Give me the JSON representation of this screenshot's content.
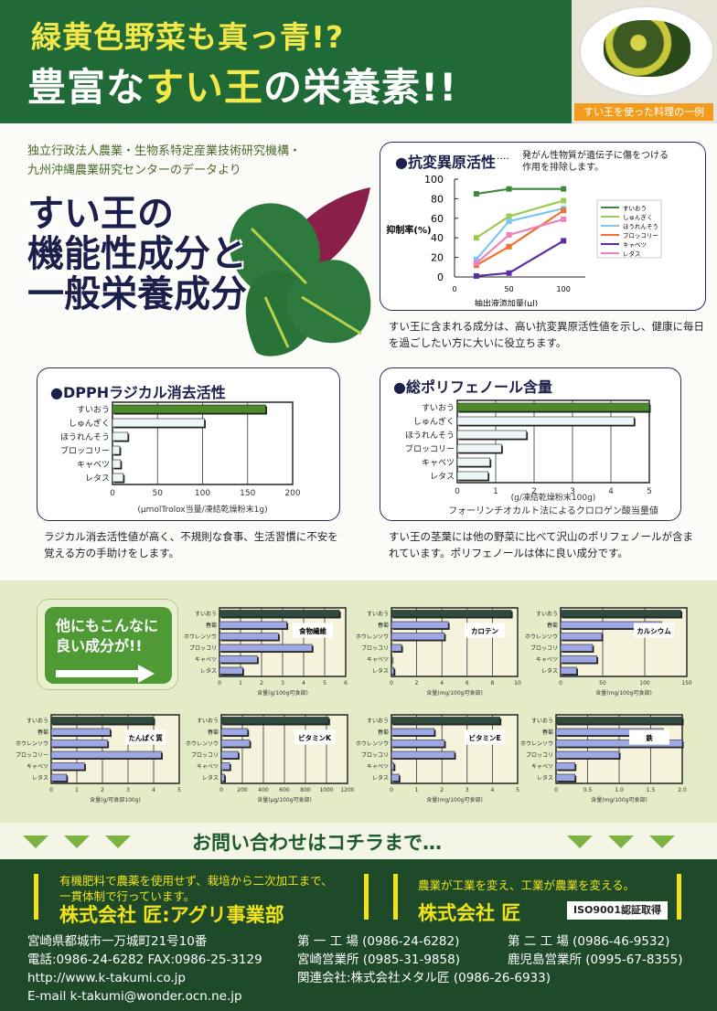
{
  "header": {
    "line1": "緑黄色野菜も真っ青!?",
    "line2_pre": "豊富な",
    "line2_highlight": "すい王",
    "line2_post": "の栄養素!!",
    "photo_caption": "すい王を使った料理の一例"
  },
  "intro": {
    "source_line1": "独立行政法人農業・生物系特定産業技術研究機構・",
    "source_line2": "九州沖縄農業研究センターのデータより",
    "title_line1": "すい王の",
    "title_line2": "機能性成分と",
    "title_line3": "一般栄養成分"
  },
  "antimutagen": {
    "title": "●抗変異原活性",
    "dots": "····",
    "note_line1": "発がん性物質が遺伝子に傷をつける",
    "note_line2": "作用を排除します。",
    "caption": "すい王に含まれる成分は、高い抗変異原活性値を示し、健康に毎日を過ごしたい方に大いに役立ちます。"
  },
  "dpph": {
    "title": "●DPPHラジカル消去活性",
    "caption": "ラジカル消去活性値が高く、不規則な食事、生活習慣に不安を覚える方の手助けをします。"
  },
  "polyphenol": {
    "title": "●総ポリフェノール含量",
    "caption": "すい王の茎葉には他の野菜に比べて沢山のポリフェノールが含まれています。ポリフェノールは体に良い成分です。"
  },
  "more": {
    "line1": "他にもこんなに",
    "line2": "良い成分が!!"
  },
  "contact": {
    "label": "お問い合わせはコチラまで…"
  },
  "footer": {
    "agri_tagline1": "有機肥料で農薬を使用せず、栽培から二次加工まで、",
    "agri_tagline2": "一貫体制で行っています。",
    "agri_company": "株式会社 匠:アグリ事業部",
    "takumi_tagline": "農業が工業を変え、工業が農業を変える。",
    "takumi_company": "株式会社 匠",
    "iso": "ISO9001認証取得",
    "address": "宮崎県都城市一万城町21号10番",
    "phone": "電話:0986-24-6282 FAX:0986-25-3129",
    "url": "http://www.k-takumi.co.jp",
    "email": "E-mail k-takumi@wonder.ocn.ne.jp",
    "factory1": "第 一 工 場 (0986-24-6282)",
    "office_miyazaki": "宮崎営業所 (0985-31-9858)",
    "affiliate": "関連会社:株式会社メタル匠 (0986-26-6933)",
    "factory2": "第 二 工 場 (0986-46-9532)",
    "office_kagoshima": "鹿児島営業所 (0995-67-8355)"
  },
  "chart_data": [
    {
      "type": "line",
      "ylabel": "抑制率(%)",
      "xlabel": "抽出液添加量(μl)",
      "x": [
        20,
        50,
        100
      ],
      "xlim": [
        0,
        120
      ],
      "xticks": [
        0,
        50,
        100
      ],
      "ylim": [
        0,
        100
      ],
      "yticks": [
        0,
        20,
        40,
        60,
        80,
        100
      ],
      "legend": "right",
      "series": [
        {
          "name": "すいおう",
          "values": [
            85,
            90,
            90
          ],
          "color": "#3d8b3a",
          "marker": "square"
        },
        {
          "name": "しゅんぎく",
          "values": [
            40,
            62,
            78
          ],
          "color": "#9ccc4a",
          "marker": "triangle"
        },
        {
          "name": "ほうれんそう",
          "values": [
            18,
            57,
            70
          ],
          "color": "#7fc6ef",
          "marker": "diamond"
        },
        {
          "name": "ブロッコリー",
          "values": [
            12,
            31,
            68
          ],
          "color": "#f0702e",
          "marker": "star"
        },
        {
          "name": "キャベツ",
          "values": [
            1,
            4,
            37
          ],
          "color": "#5a2ea0",
          "marker": "square"
        },
        {
          "name": "レタス",
          "values": [
            14,
            43,
            59
          ],
          "color": "#f07fbf",
          "marker": "circle"
        }
      ]
    },
    {
      "type": "bar",
      "orientation": "horizontal",
      "categories": [
        "すいおう",
        "しゅんぎく",
        "ほうれんそう",
        "ブロッコリー",
        "キャベツ",
        "レタス"
      ],
      "values": [
        170,
        102,
        17,
        8,
        9,
        12
      ],
      "xlim": [
        0,
        200
      ],
      "xticks": [
        0,
        50,
        100,
        150,
        200
      ],
      "xlabel": "(μmolTrolox当量/凍結乾燥粉末1g)",
      "grid": true
    },
    {
      "type": "bar",
      "orientation": "horizontal",
      "categories": [
        "すいおう",
        "しゅんぎく",
        "ほうれんそう",
        "ブロッコリー",
        "キャベツ",
        "レタス"
      ],
      "values": [
        5.0,
        4.6,
        1.8,
        1.15,
        0.85,
        0.8
      ],
      "xlim": [
        0,
        5
      ],
      "xticks": [
        0,
        1,
        2,
        3,
        4,
        5
      ],
      "xlabel": "(g/凍結乾燥粉末100g)",
      "note": "フォーリンチオカルト法によるクロロゲン酸当量値",
      "grid": true
    },
    {
      "type": "bar",
      "orientation": "horizontal",
      "title": "食物繊維",
      "categories": [
        "すいおう",
        "春菊",
        "ホウレンソウ",
        "ブロッコリ",
        "キャベツ",
        "レタス"
      ],
      "values": [
        5.7,
        3.2,
        2.8,
        4.4,
        1.8,
        1.1
      ],
      "xlim": [
        0,
        6
      ],
      "xticks": [
        0,
        1,
        2,
        3,
        4,
        5,
        6
      ],
      "xlabel": "含量(g/100g可食部)",
      "grid": true
    },
    {
      "type": "bar",
      "orientation": "horizontal",
      "title": "カロテン",
      "categories": [
        "すいおう",
        "春菊",
        "ホウレンソウ",
        "ブロッコリ",
        "キャベツ",
        "レタス"
      ],
      "values": [
        9.5,
        4.5,
        4.2,
        0.8,
        0.05,
        0.2
      ],
      "xlim": [
        0,
        10
      ],
      "xticks": [
        0,
        2,
        4,
        6,
        8,
        10
      ],
      "xlabel": "含量(mg/100g可食部)",
      "grid": true
    },
    {
      "type": "bar",
      "orientation": "horizontal",
      "title": "カルシウム",
      "categories": [
        "すいおう",
        "春菊",
        "ホウレンソウ",
        "ブロッコリ",
        "キャベツ",
        "レタス"
      ],
      "values": [
        143,
        120,
        49,
        38,
        43,
        19
      ],
      "xlim": [
        0,
        150
      ],
      "xticks": [
        0,
        50,
        100,
        150
      ],
      "xlabel": "含量(mg/100g可食部)",
      "grid": true
    },
    {
      "type": "bar",
      "orientation": "horizontal",
      "title": "たんぱく質",
      "categories": [
        "すいおう",
        "春菊",
        "ホウレンソウ",
        "ブロッコリー",
        "キャベツ",
        "レタス"
      ],
      "values": [
        4.0,
        2.3,
        2.2,
        4.3,
        1.3,
        0.6
      ],
      "xlim": [
        0,
        5
      ],
      "xticks": [
        0,
        1,
        2,
        3,
        4,
        5
      ],
      "xlabel": "含量(g/可食部100g)",
      "grid": true
    },
    {
      "type": "bar",
      "orientation": "horizontal",
      "title": "ビタミンK",
      "categories": [
        "すいおう",
        "春菊",
        "ホウレンソウ",
        "ブロッコリ",
        "キャベツ",
        "レタス"
      ],
      "values": [
        1020,
        250,
        270,
        160,
        80,
        30
      ],
      "xlim": [
        0,
        1200
      ],
      "xticks": [
        0,
        200,
        400,
        600,
        800,
        1000,
        1200
      ],
      "xlabel": "含量(μg/100g可食部)",
      "grid": true
    },
    {
      "type": "bar",
      "orientation": "horizontal",
      "title": "ビタミンE",
      "categories": [
        "すいおう",
        "春菊",
        "ホウレンソウ",
        "ブロッコリ",
        "キャベツ",
        "レタス"
      ],
      "values": [
        4.3,
        1.7,
        2.1,
        2.5,
        0.1,
        0.3
      ],
      "xlim": [
        0,
        5
      ],
      "xticks": [
        0,
        1,
        2,
        3,
        4,
        5
      ],
      "xlabel": "含量(mg/100g可食部)",
      "grid": true
    },
    {
      "type": "bar",
      "orientation": "horizontal",
      "title": "鉄",
      "categories": [
        "すいおう",
        "春菊",
        "ホウレンソウ",
        "ブロッコリ",
        "キャベツ",
        "レタス"
      ],
      "values": [
        2.0,
        1.7,
        2.0,
        1.0,
        0.3,
        0.3
      ],
      "xlim": [
        0,
        2
      ],
      "xticks": [
        "0",
        "0.5",
        "1.0",
        "1.5",
        "2.0"
      ],
      "xlabel": "含量(mg/100g可食部)",
      "grid": true
    }
  ]
}
